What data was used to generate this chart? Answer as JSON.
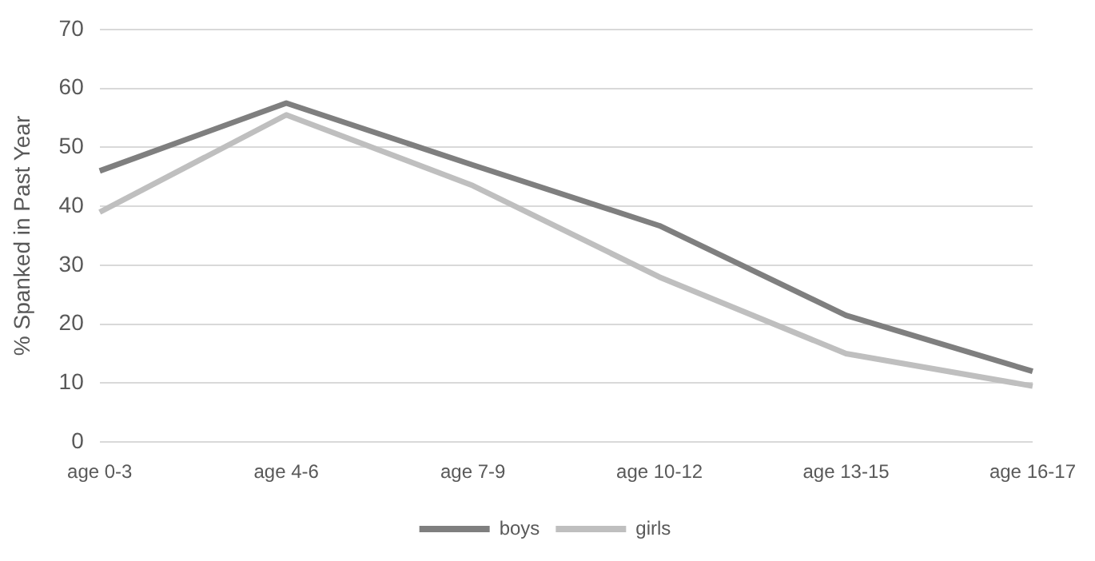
{
  "chart_data": {
    "type": "line",
    "ylabel": "% Spanked in Past Year",
    "categories": [
      "age 0-3",
      "age 4-6",
      "age 7-9",
      "age 10-12",
      "age 13-15",
      "age 16-17"
    ],
    "series": [
      {
        "name": "boys",
        "color": "#7f7f7f",
        "values": [
          46,
          57.5,
          47,
          36.7,
          21.5,
          12
        ]
      },
      {
        "name": "girls",
        "color": "#bfbfbf",
        "values": [
          39,
          55.5,
          43.5,
          28,
          15,
          9.5
        ]
      }
    ],
    "ylim": [
      0,
      70
    ],
    "yticks": [
      0,
      10,
      20,
      30,
      40,
      50,
      60,
      70
    ],
    "grid": "y",
    "legend": "bottom",
    "marker": "none",
    "line_style": "solid"
  }
}
